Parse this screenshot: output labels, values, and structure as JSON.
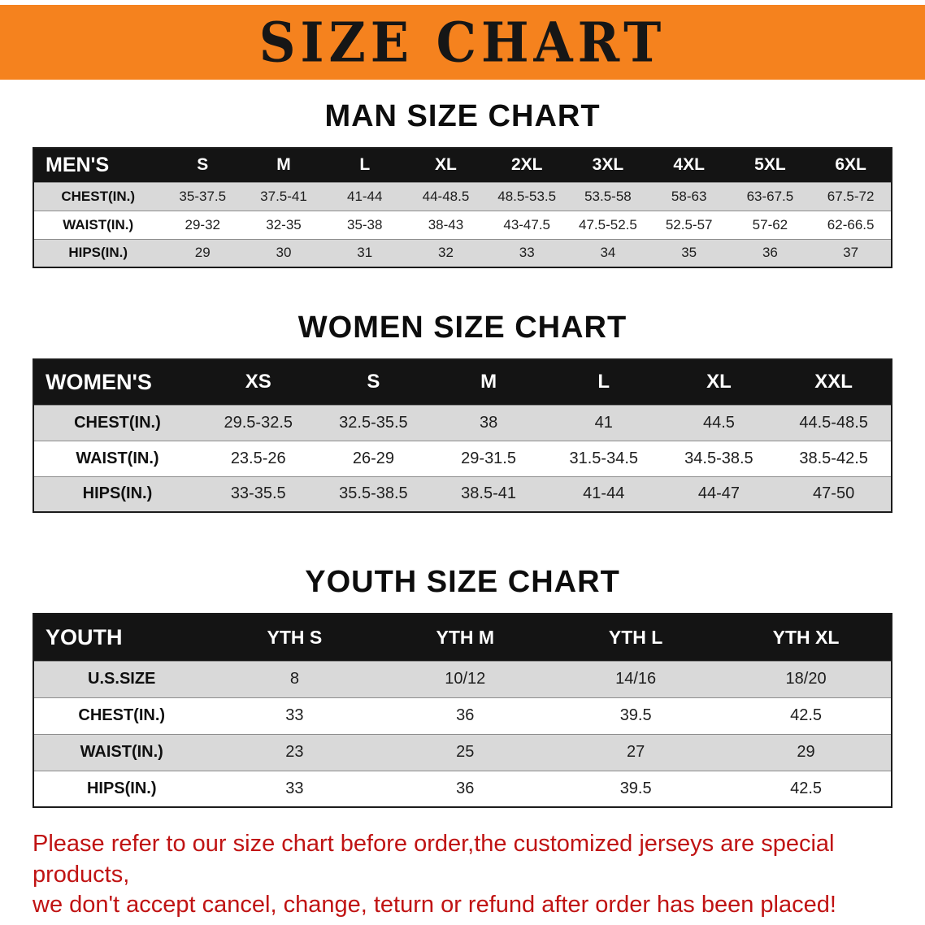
{
  "banner": {
    "title": "SIZE CHART"
  },
  "colors": {
    "banner-bg": "#F5821E",
    "banner-text": "#161616",
    "header-bar": "#141414",
    "header-text": "#FFFFFF",
    "row-shaded": "#D9D9D9",
    "row-plain": "#FFFFFF",
    "notice-text": "#C01313"
  },
  "sections": [
    {
      "id": "men",
      "heading": "MAN SIZE CHART",
      "table": {
        "header": [
          "MEN'S",
          "S",
          "M",
          "L",
          "XL",
          "2XL",
          "3XL",
          "4XL",
          "5XL",
          "6XL"
        ],
        "rows": [
          [
            "CHEST(IN.)",
            "35-37.5",
            "37.5-41",
            "41-44",
            "44-48.5",
            "48.5-53.5",
            "53.5-58",
            "58-63",
            "63-67.5",
            "67.5-72"
          ],
          [
            "WAIST(IN.)",
            "29-32",
            "32-35",
            "35-38",
            "38-43",
            "43-47.5",
            "47.5-52.5",
            "52.5-57",
            "57-62",
            "62-66.5"
          ],
          [
            "HIPS(IN.)",
            "29",
            "30",
            "31",
            "32",
            "33",
            "34",
            "35",
            "36",
            "37"
          ]
        ]
      }
    },
    {
      "id": "women",
      "heading": "WOMEN SIZE CHART",
      "table": {
        "header": [
          "WOMEN'S",
          "XS",
          "S",
          "M",
          "L",
          "XL",
          "XXL"
        ],
        "rows": [
          [
            "CHEST(IN.)",
            "29.5-32.5",
            "32.5-35.5",
            "38",
            "41",
            "44.5",
            "44.5-48.5"
          ],
          [
            "WAIST(IN.)",
            "23.5-26",
            "26-29",
            "29-31.5",
            "31.5-34.5",
            "34.5-38.5",
            "38.5-42.5"
          ],
          [
            "HIPS(IN.)",
            "33-35.5",
            "35.5-38.5",
            "38.5-41",
            "41-44",
            "44-47",
            "47-50"
          ]
        ]
      }
    },
    {
      "id": "youth",
      "heading": "YOUTH SIZE CHART",
      "table": {
        "header": [
          "YOUTH",
          "YTH S",
          "YTH M",
          "YTH L",
          "YTH XL"
        ],
        "rows": [
          [
            "U.S.SIZE",
            "8",
            "10/12",
            "14/16",
            "18/20"
          ],
          [
            "CHEST(IN.)",
            "33",
            "36",
            "39.5",
            "42.5"
          ],
          [
            "WAIST(IN.)",
            "23",
            "25",
            "27",
            "29"
          ],
          [
            "HIPS(IN.)",
            "33",
            "36",
            "39.5",
            "42.5"
          ]
        ]
      }
    }
  ],
  "footer": {
    "lines": [
      "Please refer to our size chart before order,the customized jerseys are special products,",
      "we don't accept cancel, change, teturn or refund after order has been placed!"
    ]
  }
}
